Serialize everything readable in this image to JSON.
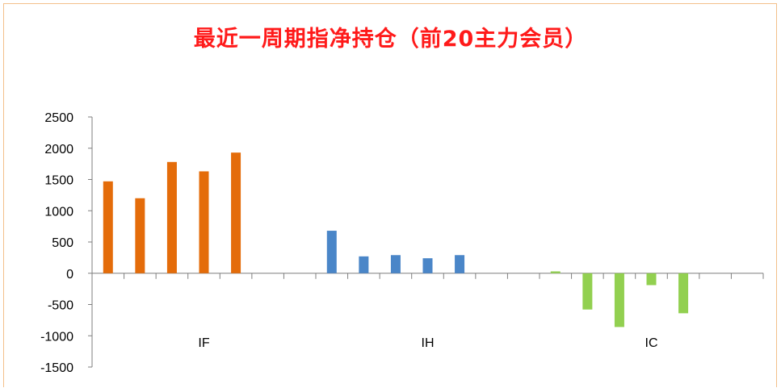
{
  "chart_data": {
    "type": "bar",
    "title": "最近一周期指净持仓（前20主力会员）",
    "groups": [
      {
        "name": "IF",
        "color": "#e46c0a",
        "values": [
          1470,
          1200,
          1780,
          1630,
          1930
        ]
      },
      {
        "name": "IH",
        "color": "#4a86c8",
        "values": [
          680,
          270,
          290,
          240,
          290
        ]
      },
      {
        "name": "IC",
        "color": "#92d050",
        "values": [
          30,
          -580,
          -860,
          -190,
          -640
        ]
      }
    ],
    "y_ticks": [
      "2500",
      "2000",
      "1500",
      "1000",
      "500",
      "0",
      "-500",
      "-1000",
      "-1500"
    ],
    "ylim": [
      -1500,
      2500
    ],
    "grid": false,
    "legend": "none"
  }
}
